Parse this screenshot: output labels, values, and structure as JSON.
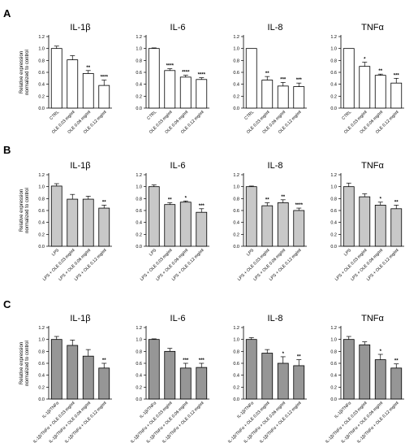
{
  "figure": {
    "ylabel": "Relative expression\nnormalized to control",
    "yticks": [
      "0.0",
      "0.2",
      "0.4",
      "0.6",
      "0.8",
      "1.0",
      "1.2"
    ]
  },
  "colors": {
    "A": "#ffffff",
    "B": "#c8c8c8",
    "C": "#969696",
    "axis": "#000000"
  },
  "chart_data": [
    {
      "panel": "A",
      "type": "bar",
      "ylim": [
        0,
        1.2
      ],
      "categories": [
        "CTRL",
        "OLE 0.03 mg/ml",
        "OLE 0.06 mg/ml",
        "OLE 0.12 mg/ml"
      ],
      "charts": [
        {
          "title": "IL-1β",
          "values": [
            1.0,
            0.81,
            0.58,
            0.38
          ],
          "errors": [
            0.04,
            0.07,
            0.05,
            0.09
          ],
          "sig": [
            "",
            "",
            "**",
            "****"
          ]
        },
        {
          "title": "IL-6",
          "values": [
            1.0,
            0.63,
            0.52,
            0.48
          ],
          "errors": [
            0.01,
            0.03,
            0.03,
            0.03
          ],
          "sig": [
            "",
            "****",
            "****",
            "****"
          ]
        },
        {
          "title": "IL-8",
          "values": [
            1.0,
            0.47,
            0.37,
            0.36
          ],
          "errors": [
            0.0,
            0.06,
            0.06,
            0.06
          ],
          "sig": [
            "",
            "**",
            "***",
            "***"
          ]
        },
        {
          "title": "TNFα",
          "values": [
            1.0,
            0.7,
            0.55,
            0.42
          ],
          "errors": [
            0.0,
            0.07,
            0.02,
            0.08
          ],
          "sig": [
            "",
            "*",
            "**",
            "***"
          ]
        }
      ]
    },
    {
      "panel": "B",
      "type": "bar",
      "ylim": [
        0,
        1.2
      ],
      "categories": [
        "LPS",
        "LPS + OLE 0.03 mg/ml",
        "LPS + OLE 0.06 mg/ml",
        "LPS + OLE 0.12 mg/ml"
      ],
      "charts": [
        {
          "title": "IL-1β",
          "values": [
            1.01,
            0.79,
            0.79,
            0.64
          ],
          "errors": [
            0.04,
            0.08,
            0.05,
            0.05
          ],
          "sig": [
            "",
            "",
            "",
            "**"
          ]
        },
        {
          "title": "IL-6",
          "values": [
            1.0,
            0.7,
            0.74,
            0.57
          ],
          "errors": [
            0.03,
            0.03,
            0.02,
            0.06
          ],
          "sig": [
            "",
            "**",
            "*",
            "***"
          ]
        },
        {
          "title": "IL-8",
          "values": [
            1.0,
            0.68,
            0.73,
            0.6
          ],
          "errors": [
            0.01,
            0.05,
            0.05,
            0.04
          ],
          "sig": [
            "",
            "**",
            "**",
            "****"
          ]
        },
        {
          "title": "TNFα",
          "values": [
            1.0,
            0.83,
            0.69,
            0.63
          ],
          "errors": [
            0.06,
            0.05,
            0.05,
            0.06
          ],
          "sig": [
            "",
            "",
            "*",
            "**"
          ]
        }
      ]
    },
    {
      "panel": "C",
      "type": "bar",
      "ylim": [
        0,
        1.2
      ],
      "categories": [
        "IL-1β/TNFα",
        "IL-1β/TNFα + OLE 0.03 mg/ml",
        "IL-1β/TNFα + OLE 0.06 mg/ml",
        "IL-1β/TNFα + OLE 0.12 mg/ml"
      ],
      "charts": [
        {
          "title": "IL-1β",
          "values": [
            1.0,
            0.9,
            0.72,
            0.52
          ],
          "errors": [
            0.05,
            0.09,
            0.11,
            0.08
          ],
          "sig": [
            "",
            "",
            "",
            "**"
          ]
        },
        {
          "title": "IL-6",
          "values": [
            1.0,
            0.8,
            0.52,
            0.53
          ],
          "errors": [
            0.01,
            0.05,
            0.08,
            0.07
          ],
          "sig": [
            "",
            "",
            "***",
            "***"
          ]
        },
        {
          "title": "IL-8",
          "values": [
            1.0,
            0.77,
            0.6,
            0.56
          ],
          "errors": [
            0.03,
            0.06,
            0.11,
            0.1
          ],
          "sig": [
            "",
            "",
            "*",
            "**"
          ]
        },
        {
          "title": "TNFα",
          "values": [
            1.0,
            0.91,
            0.66,
            0.52
          ],
          "errors": [
            0.05,
            0.05,
            0.09,
            0.07
          ],
          "sig": [
            "",
            "",
            "*",
            "**"
          ]
        }
      ]
    }
  ]
}
